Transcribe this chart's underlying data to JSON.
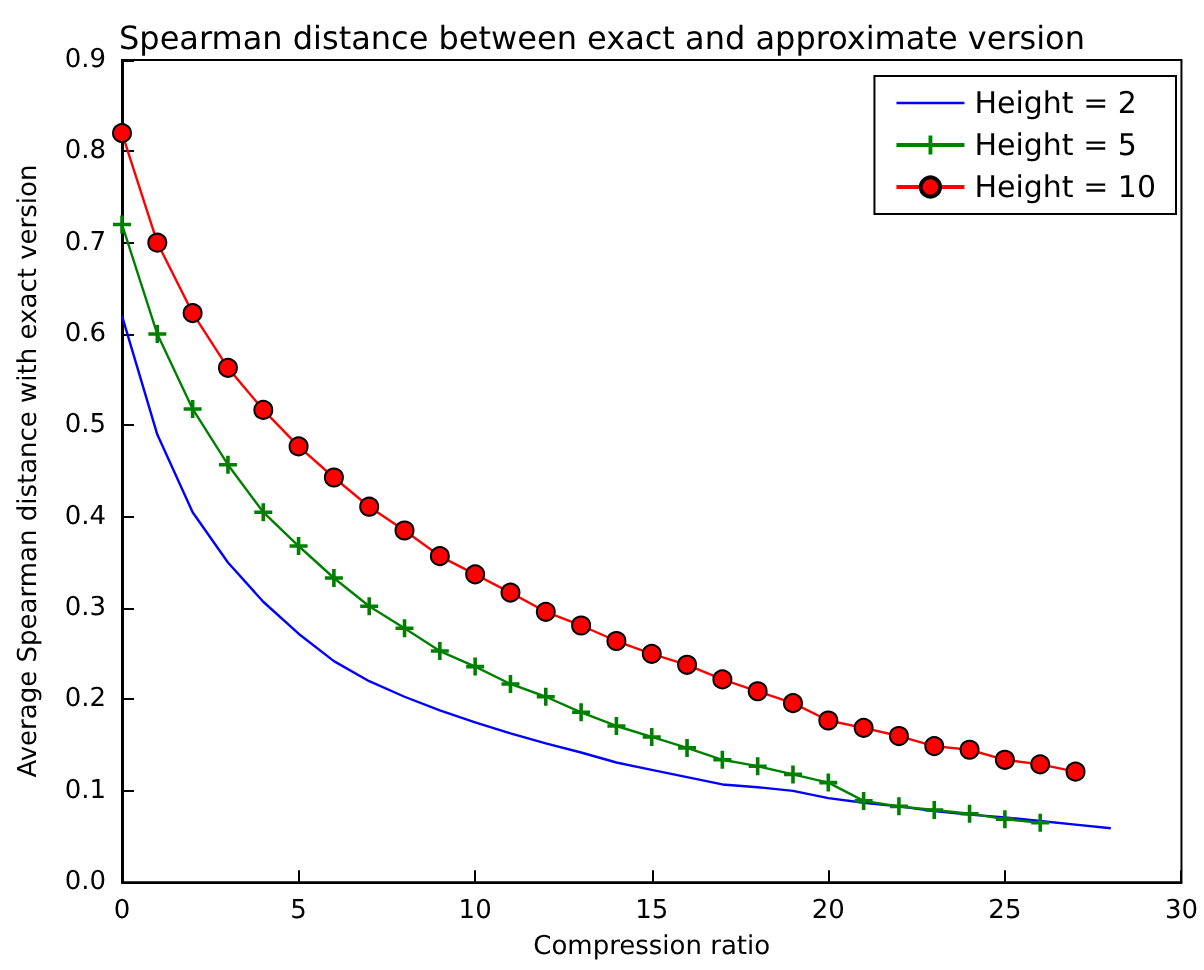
{
  "chart_data": {
    "type": "line",
    "title": "Spearman distance between exact and approximate version",
    "xlabel": "Compression ratio",
    "ylabel": "Average Spearman distance with exact version",
    "xlim": [
      0,
      30
    ],
    "xticks": [
      0,
      5,
      10,
      15,
      20,
      25,
      30
    ],
    "ylim": [
      0,
      0.9
    ],
    "yticks": [
      {
        "value": 0,
        "label": "0.0"
      },
      0.1,
      0.2,
      0.3,
      0.4,
      0.5,
      0.6,
      0.7,
      0.8,
      0.9
    ],
    "grid": false,
    "legend": "top right",
    "series": [
      {
        "name": "Height = 2",
        "color": "#0000ff",
        "marker": "none",
        "x": [
          0,
          1,
          2,
          3,
          4,
          5,
          6,
          7,
          8,
          9,
          10,
          11,
          12,
          13,
          14,
          15,
          16,
          17,
          18,
          19,
          20,
          21,
          22,
          23,
          24,
          25,
          26,
          27,
          28
        ],
        "values": [
          0.62,
          0.49,
          0.405,
          0.35,
          0.307,
          0.272,
          0.242,
          0.22,
          0.203,
          0.188,
          0.175,
          0.163,
          0.152,
          0.142,
          0.131,
          0.123,
          0.115,
          0.107,
          0.104,
          0.1,
          0.092,
          0.087,
          0.083,
          0.078,
          0.074,
          0.071,
          0.067,
          0.063,
          0.059
        ]
      },
      {
        "name": "Height = 5",
        "color": "#008000",
        "marker": "cross",
        "x": [
          0,
          1,
          2,
          3,
          4,
          5,
          6,
          7,
          8,
          9,
          10,
          11,
          12,
          13,
          14,
          15,
          16,
          17,
          18,
          19,
          20,
          21,
          22,
          23,
          24,
          25,
          26
        ],
        "values": [
          0.72,
          0.6,
          0.518,
          0.457,
          0.405,
          0.368,
          0.333,
          0.302,
          0.278,
          0.253,
          0.236,
          0.217,
          0.203,
          0.186,
          0.171,
          0.159,
          0.147,
          0.134,
          0.127,
          0.118,
          0.109,
          0.089,
          0.083,
          0.079,
          0.075,
          0.069,
          0.065
        ]
      },
      {
        "name": "Height = 10",
        "color": "#ff0000",
        "marker": "circle",
        "x": [
          0,
          1,
          2,
          3,
          4,
          5,
          6,
          7,
          8,
          9,
          10,
          11,
          12,
          13,
          14,
          15,
          16,
          17,
          18,
          19,
          20,
          21,
          22,
          23,
          24,
          25,
          26,
          27
        ],
        "values": [
          0.82,
          0.7,
          0.623,
          0.563,
          0.517,
          0.477,
          0.443,
          0.411,
          0.385,
          0.357,
          0.337,
          0.317,
          0.296,
          0.281,
          0.264,
          0.25,
          0.238,
          0.222,
          0.209,
          0.196,
          0.177,
          0.169,
          0.16,
          0.149,
          0.145,
          0.134,
          0.129,
          0.121
        ]
      }
    ]
  }
}
